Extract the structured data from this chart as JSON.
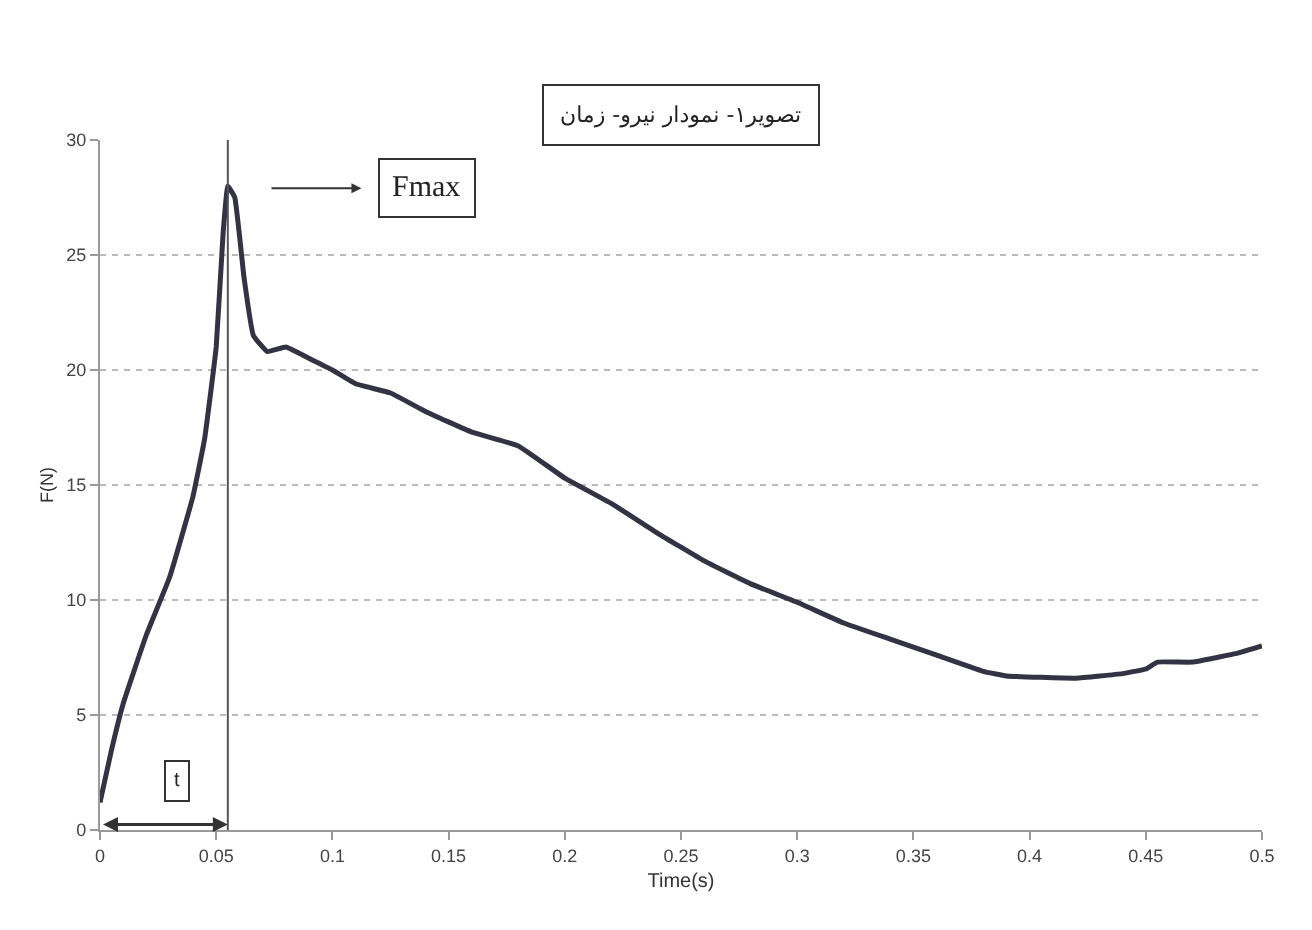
{
  "chart_data": {
    "type": "line",
    "title": "تصویر۱- نمودار نیرو- زمان",
    "xlabel": "Time(s)",
    "ylabel": "F(N)",
    "x": [
      0,
      0.005,
      0.01,
      0.02,
      0.03,
      0.04,
      0.045,
      0.05,
      0.053,
      0.055,
      0.058,
      0.062,
      0.066,
      0.072,
      0.08,
      0.09,
      0.1,
      0.11,
      0.125,
      0.14,
      0.16,
      0.18,
      0.2,
      0.22,
      0.24,
      0.26,
      0.28,
      0.3,
      0.32,
      0.34,
      0.36,
      0.38,
      0.39,
      0.42,
      0.44,
      0.45,
      0.455,
      0.47,
      0.49,
      0.5
    ],
    "series": [
      {
        "color": "#333344",
        "values": [
          1.2,
          3.5,
          5.5,
          8.5,
          11,
          14.5,
          17,
          21,
          26,
          28,
          27.5,
          24,
          21.5,
          20.8,
          21,
          20.5,
          20,
          19.4,
          19,
          18.2,
          17.3,
          16.7,
          15.3,
          14.2,
          12.9,
          11.7,
          10.7,
          9.9,
          9,
          8.3,
          7.6,
          6.9,
          6.7,
          6.6,
          6.8,
          7.0,
          7.3,
          7.3,
          7.7,
          8
        ]
      }
    ],
    "xlim": [
      0,
      0.5
    ],
    "xticks": [
      0,
      0.05,
      0.1,
      0.15,
      0.2,
      0.25,
      0.3,
      0.35,
      0.4,
      0.45,
      0.5
    ],
    "ylim": [
      0,
      30
    ],
    "yticks": [
      0,
      5,
      10,
      15,
      20,
      25,
      30
    ],
    "grid": "y",
    "marker": "none",
    "line_style": "solid",
    "ref_lines": [
      {
        "axis": "x",
        "value": 0.055,
        "color": "#555555",
        "line_style": "solid"
      }
    ],
    "annotations": [
      "Fmax",
      "t"
    ]
  }
}
